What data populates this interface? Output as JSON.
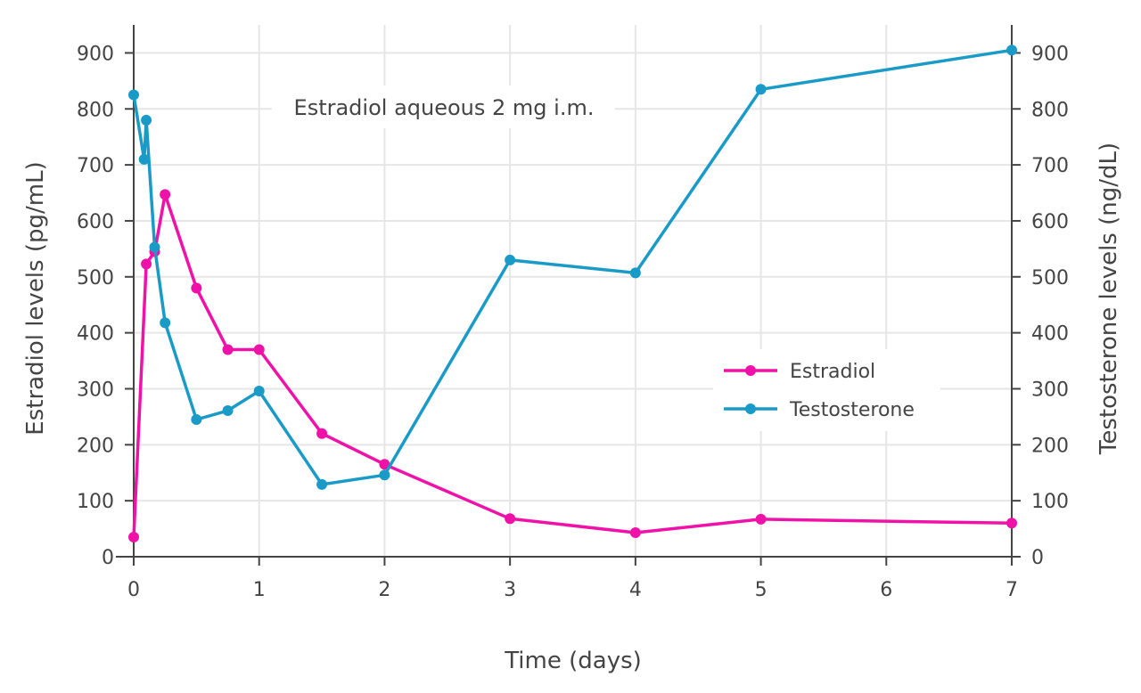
{
  "chart_data": {
    "type": "line",
    "annotation": "Estradiol aqueous 2 mg i.m.",
    "xlabel": "Time (days)",
    "ylabel": "Estradiol levels (pg/mL)",
    "y2label": "Testosterone levels (ng/dL)",
    "xlim": [
      0,
      7
    ],
    "ylim": [
      0,
      950
    ],
    "y2lim": [
      0,
      950
    ],
    "xticks": [
      0,
      1,
      2,
      3,
      4,
      5,
      6,
      7
    ],
    "yticks": [
      0,
      100,
      200,
      300,
      400,
      500,
      600,
      700,
      800,
      900
    ],
    "grid": true,
    "legend_position": "right",
    "series": [
      {
        "name": "Estradiol",
        "axis": "left",
        "color": "#f012a8",
        "x": [
          0,
          0.1,
          0.167,
          0.25,
          0.5,
          0.75,
          1,
          1.5,
          2,
          3,
          4,
          5,
          7
        ],
        "y": [
          35,
          523,
          545,
          647,
          480,
          370,
          370,
          220,
          165,
          68,
          43,
          67,
          60
        ]
      },
      {
        "name": "Testosterone",
        "axis": "right",
        "color": "#1a9bc7",
        "x": [
          0,
          0.083,
          0.1,
          0.167,
          0.25,
          0.5,
          0.75,
          1,
          1.5,
          2,
          3,
          4,
          5,
          7
        ],
        "y": [
          825,
          710,
          780,
          553,
          418,
          245,
          261,
          296,
          129,
          146,
          530,
          507,
          835,
          905
        ]
      }
    ]
  }
}
